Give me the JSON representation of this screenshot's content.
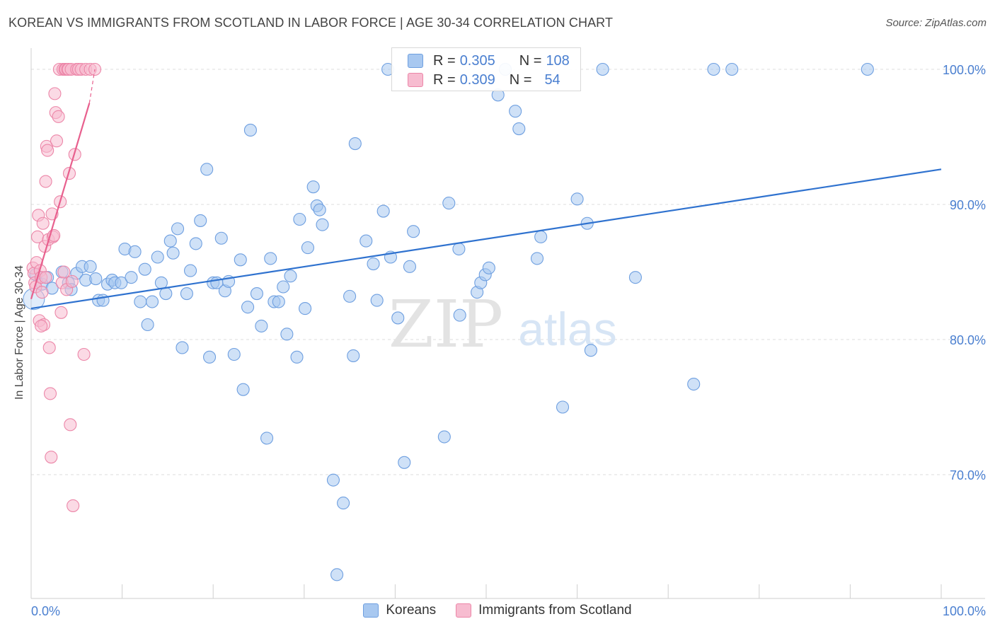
{
  "header": {
    "title": "KOREAN VS IMMIGRANTS FROM SCOTLAND IN LABOR FORCE | AGE 30-34 CORRELATION CHART",
    "source": "Source: ZipAtlas.com"
  },
  "watermark": {
    "zip": "ZIP",
    "atlas": "atlas"
  },
  "legend": {
    "rows": [
      {
        "r_label": "R = ",
        "r_value": "0.305",
        "n_label": "N = ",
        "n_value": "108",
        "color": "#a8c8f0",
        "border": "#6e9fe0"
      },
      {
        "r_label": "R = ",
        "r_value": "0.309",
        "n_label": "N = ",
        "n_value": "54",
        "color": "#f7bcd0",
        "border": "#ec86a8"
      }
    ]
  },
  "bottom_legend": {
    "items": [
      {
        "label": "Koreans",
        "color": "#a8c8f0",
        "border": "#6e9fe0"
      },
      {
        "label": "Immigrants from Scotland",
        "color": "#f7bcd0",
        "border": "#ec86a8"
      }
    ]
  },
  "chart_data": {
    "type": "scatter",
    "title": "KOREAN VS IMMIGRANTS FROM SCOTLAND IN LABOR FORCE | AGE 30-34 CORRELATION CHART",
    "xlabel": "",
    "ylabel": "In Labor Force | Age 30-34",
    "xlim": [
      0,
      100
    ],
    "ylim": [
      62,
      102
    ],
    "x_tick_labels": [
      "0.0%",
      "100.0%"
    ],
    "y_ticks": [
      70,
      80,
      90,
      100
    ],
    "y_tick_labels": [
      "70.0%",
      "80.0%",
      "90.0%",
      "100.0%"
    ],
    "grid": true,
    "legend_position": "top-center",
    "series": [
      {
        "name": "Koreans",
        "color": "#6e9fe0",
        "fill": "#a8c8f0",
        "r": 0.305,
        "n": 108,
        "trend": {
          "x": [
            0,
            100
          ],
          "y": [
            82.3,
            92.6
          ]
        },
        "points": [
          [
            0.5,
            84.8
          ],
          [
            1.2,
            84.1
          ],
          [
            1.8,
            84.6
          ],
          [
            2.3,
            83.8
          ],
          [
            3.4,
            85.0
          ],
          [
            4.1,
            84.2
          ],
          [
            4.4,
            83.7
          ],
          [
            5.0,
            84.9
          ],
          [
            5.6,
            85.4
          ],
          [
            6.0,
            84.4
          ],
          [
            6.5,
            85.4
          ],
          [
            7.1,
            84.5
          ],
          [
            7.4,
            82.9
          ],
          [
            7.9,
            82.9
          ],
          [
            8.4,
            84.1
          ],
          [
            8.9,
            84.4
          ],
          [
            9.2,
            84.2
          ],
          [
            9.9,
            84.2
          ],
          [
            10.3,
            86.7
          ],
          [
            11.0,
            84.6
          ],
          [
            11.4,
            86.5
          ],
          [
            12.0,
            82.8
          ],
          [
            12.5,
            85.2
          ],
          [
            12.8,
            81.1
          ],
          [
            13.3,
            82.8
          ],
          [
            13.9,
            86.1
          ],
          [
            14.3,
            84.2
          ],
          [
            14.8,
            83.4
          ],
          [
            15.3,
            87.3
          ],
          [
            15.6,
            86.4
          ],
          [
            16.1,
            88.2
          ],
          [
            16.6,
            79.4
          ],
          [
            17.1,
            83.4
          ],
          [
            17.5,
            85.1
          ],
          [
            18.1,
            87.1
          ],
          [
            18.6,
            88.8
          ],
          [
            19.3,
            92.6
          ],
          [
            19.6,
            78.7
          ],
          [
            20.0,
            84.2
          ],
          [
            20.4,
            84.2
          ],
          [
            20.9,
            87.5
          ],
          [
            21.3,
            83.6
          ],
          [
            21.7,
            84.3
          ],
          [
            22.3,
            78.9
          ],
          [
            23.0,
            85.9
          ],
          [
            23.3,
            76.3
          ],
          [
            23.8,
            82.4
          ],
          [
            24.1,
            95.5
          ],
          [
            24.8,
            83.4
          ],
          [
            25.3,
            81.0
          ],
          [
            25.9,
            72.7
          ],
          [
            26.3,
            86.0
          ],
          [
            26.7,
            82.8
          ],
          [
            27.2,
            82.8
          ],
          [
            27.7,
            83.9
          ],
          [
            28.1,
            80.4
          ],
          [
            28.5,
            84.7
          ],
          [
            29.2,
            78.7
          ],
          [
            29.5,
            88.9
          ],
          [
            30.1,
            82.3
          ],
          [
            30.4,
            86.8
          ],
          [
            31.0,
            91.3
          ],
          [
            31.4,
            89.9
          ],
          [
            31.7,
            89.6
          ],
          [
            32.0,
            88.5
          ],
          [
            33.2,
            69.6
          ],
          [
            33.6,
            62.6
          ],
          [
            34.3,
            67.9
          ],
          [
            35.0,
            83.2
          ],
          [
            35.4,
            78.8
          ],
          [
            35.6,
            94.5
          ],
          [
            36.8,
            87.3
          ],
          [
            37.6,
            85.6
          ],
          [
            38.0,
            82.9
          ],
          [
            38.7,
            89.5
          ],
          [
            39.2,
            100.0
          ],
          [
            39.5,
            86.1
          ],
          [
            40.3,
            81.6
          ],
          [
            41.0,
            70.9
          ],
          [
            41.6,
            85.4
          ],
          [
            42.0,
            88.0
          ],
          [
            45.4,
            72.8
          ],
          [
            45.9,
            90.1
          ],
          [
            47.0,
            86.7
          ],
          [
            47.1,
            81.8
          ],
          [
            49.0,
            83.5
          ],
          [
            49.4,
            84.2
          ],
          [
            49.9,
            84.8
          ],
          [
            50.3,
            85.3
          ],
          [
            51.3,
            98.1
          ],
          [
            52.1,
            100.0
          ],
          [
            53.2,
            96.9
          ],
          [
            53.6,
            95.6
          ],
          [
            55.6,
            86.0
          ],
          [
            56.0,
            87.6
          ],
          [
            58.4,
            75.0
          ],
          [
            60.0,
            90.4
          ],
          [
            61.1,
            88.6
          ],
          [
            61.5,
            79.2
          ],
          [
            62.8,
            100.0
          ],
          [
            66.4,
            84.6
          ],
          [
            72.8,
            76.7
          ],
          [
            75.0,
            100.0
          ],
          [
            77.0,
            100.0
          ],
          [
            91.9,
            100.0
          ]
        ]
      },
      {
        "name": "Immigrants from Scotland",
        "color": "#ec86a8",
        "fill": "#f7bcd0",
        "r": 0.309,
        "n": 54,
        "trend": {
          "x": [
            0,
            6.4
          ],
          "y": [
            83.0,
            97.5
          ]
        },
        "points": [
          [
            0.2,
            85.3
          ],
          [
            0.3,
            84.9
          ],
          [
            0.4,
            84.2
          ],
          [
            0.5,
            83.9
          ],
          [
            0.6,
            85.7
          ],
          [
            0.7,
            87.6
          ],
          [
            0.8,
            89.2
          ],
          [
            0.9,
            81.4
          ],
          [
            1.0,
            85.1
          ],
          [
            1.1,
            84.6
          ],
          [
            1.2,
            83.5
          ],
          [
            1.3,
            88.6
          ],
          [
            1.4,
            81.1
          ],
          [
            1.5,
            86.9
          ],
          [
            1.6,
            91.7
          ],
          [
            1.7,
            94.3
          ],
          [
            1.8,
            94.0
          ],
          [
            1.9,
            87.4
          ],
          [
            2.0,
            79.4
          ],
          [
            2.1,
            76.0
          ],
          [
            2.2,
            71.3
          ],
          [
            2.3,
            89.3
          ],
          [
            2.4,
            87.6
          ],
          [
            2.5,
            87.7
          ],
          [
            2.6,
            98.2
          ],
          [
            2.7,
            96.8
          ],
          [
            2.8,
            94.7
          ],
          [
            3.0,
            96.5
          ],
          [
            3.1,
            100.0
          ],
          [
            3.2,
            90.2
          ],
          [
            3.3,
            82.0
          ],
          [
            3.4,
            84.2
          ],
          [
            3.5,
            100.0
          ],
          [
            3.6,
            85.0
          ],
          [
            3.7,
            100.0
          ],
          [
            3.8,
            100.0
          ],
          [
            3.9,
            83.7
          ],
          [
            4.0,
            100.0
          ],
          [
            4.1,
            100.0
          ],
          [
            4.2,
            92.3
          ],
          [
            4.3,
            73.7
          ],
          [
            4.4,
            100.0
          ],
          [
            4.5,
            84.3
          ],
          [
            4.6,
            67.7
          ],
          [
            4.8,
            93.7
          ],
          [
            5.0,
            100.0
          ],
          [
            5.2,
            100.0
          ],
          [
            5.5,
            100.0
          ],
          [
            5.8,
            78.9
          ],
          [
            6.0,
            100.0
          ],
          [
            6.5,
            100.0
          ],
          [
            7.0,
            100.0
          ],
          [
            1.6,
            84.6
          ],
          [
            1.1,
            81.0
          ]
        ]
      }
    ]
  }
}
